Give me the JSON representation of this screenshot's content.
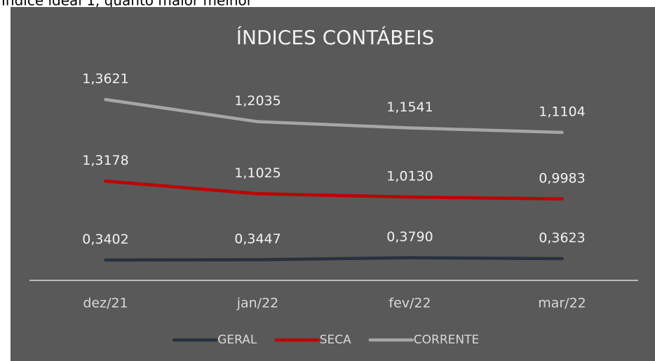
{
  "header": {
    "text": "Índice ideal 1, quanto maior melhor"
  },
  "chart_data": {
    "type": "line",
    "stacked": true,
    "title": "ÍNDICES CONTÁBEIS",
    "categories": [
      "dez/21",
      "jan/22",
      "fev/22",
      "mar/22"
    ],
    "ylim": [
      0,
      3.5
    ],
    "series": [
      {
        "name": "GERAL",
        "color": "#28313d",
        "values": [
          0.3402,
          0.3447,
          0.379,
          0.3623
        ],
        "value_labels": [
          "0,3402",
          "0,3447",
          "0,3790",
          "0,3623"
        ]
      },
      {
        "name": "SECA",
        "color": "#c00000",
        "values": [
          1.3178,
          1.1025,
          1.013,
          0.9983
        ],
        "value_labels": [
          "1,3178",
          "1,1025",
          "1,0130",
          "0,9983"
        ]
      },
      {
        "name": "CORRENTE",
        "color": "#a6a6a6",
        "values": [
          1.3621,
          1.2035,
          1.1541,
          1.1104
        ],
        "value_labels": [
          "1,3621",
          "1,2035",
          "1,1541",
          "1,1104"
        ]
      }
    ],
    "legend": "bottom"
  }
}
